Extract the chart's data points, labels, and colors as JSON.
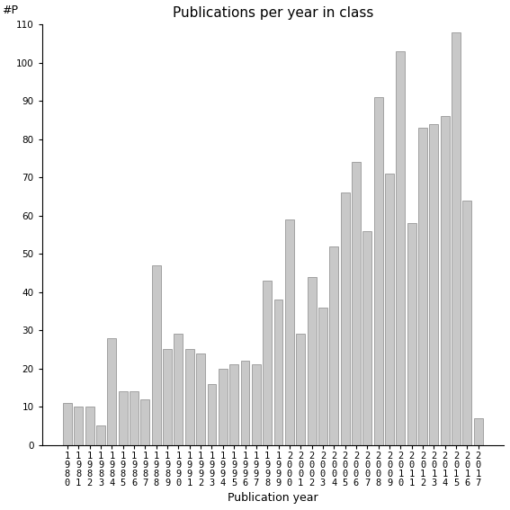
{
  "title": "Publications per year in class",
  "xlabel": "Publication year",
  "ylabel": "#P",
  "years": [
    "1980",
    "1981",
    "1982",
    "1983",
    "1984",
    "1985",
    "1986",
    "1987",
    "1988",
    "1989",
    "1990",
    "1991",
    "1992",
    "1993",
    "1994",
    "1995",
    "1996",
    "1997",
    "1998",
    "1999",
    "2000",
    "2001",
    "2002",
    "2003",
    "2004",
    "2005",
    "2006",
    "2007",
    "2008",
    "2009",
    "2010",
    "2011",
    "2012",
    "2013",
    "2014",
    "2015",
    "2016",
    "2017"
  ],
  "values": [
    11,
    10,
    10,
    5,
    28,
    14,
    14,
    12,
    47,
    25,
    29,
    25,
    24,
    16,
    20,
    21,
    22,
    21,
    43,
    38,
    59,
    29,
    44,
    36,
    52,
    66,
    74,
    56,
    91,
    71,
    103,
    58,
    83,
    84,
    86,
    108,
    64,
    7
  ],
  "bar_color": "#c8c8c8",
  "bar_edgecolor": "#888888",
  "ylim": [
    0,
    110
  ],
  "yticks": [
    0,
    10,
    20,
    30,
    40,
    50,
    60,
    70,
    80,
    90,
    100,
    110
  ],
  "background_color": "#ffffff",
  "title_fontsize": 11,
  "axis_label_fontsize": 9,
  "tick_fontsize": 7.5
}
